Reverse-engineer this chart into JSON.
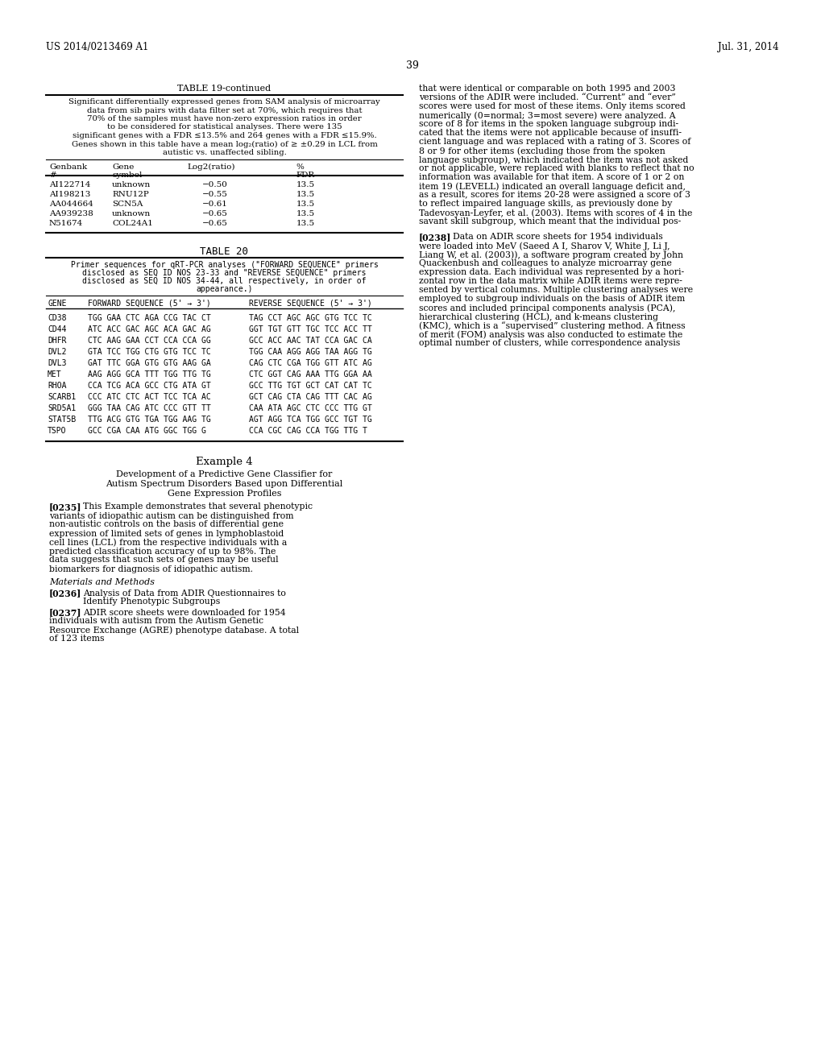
{
  "bg_color": "#ffffff",
  "header_left": "US 2014/0213469 A1",
  "header_right": "Jul. 31, 2014",
  "page_number": "39",
  "table19_title": "TABLE 19-continued",
  "table19_caption_lines": [
    "Significant differentially expressed genes from SAM analysis of microarray",
    "data from sib pairs with data filter set at 70%, which requires that",
    "70% of the samples must have non-zero expression ratios in order",
    "to be considered for statistical analyses. There were 135",
    "significant genes with a FDR ≤13.5% and 264 genes with a FDR ≤15.9%.",
    "Genes shown in this table have a mean log₂(ratio) of ≥ ±0.29 in LCL from",
    "autistic vs. unaffected sibling."
  ],
  "table19_data": [
    [
      "AI122714",
      "unknown",
      "−0.50",
      "13.5"
    ],
    [
      "AI198213",
      "RNU12P",
      "−0.55",
      "13.5"
    ],
    [
      "AA044664",
      "SCN5A",
      "−0.61",
      "13.5"
    ],
    [
      "AA939238",
      "unknown",
      "−0.65",
      "13.5"
    ],
    [
      "N51674",
      "COL24A1",
      "−0.65",
      "13.5"
    ]
  ],
  "table20_title": "TABLE 20",
  "table20_caption_lines": [
    "Primer sequences for qRT-PCR analyses (\"FORWARD SEQUENCE\" primers",
    "disclosed as SEQ ID NOS 23-33 and \"REVERSE SEQUENCE\" primers",
    "disclosed as SEQ ID NOS 34-44, all respectively, in order of",
    "appearance.)"
  ],
  "table20_data": [
    [
      "CD38",
      "TGG GAA CTC AGA CCG TAC CT",
      "TAG CCT AGC AGC GTG TCC TC"
    ],
    [
      "CD44",
      "ATC ACC GAC AGC ACA GAC AG",
      "GGT TGT GTT TGC TCC ACC TT"
    ],
    [
      "DHFR",
      "CTC AAG GAA CCT CCA CCA GG",
      "GCC ACC AAC TAT CCA GAC CA"
    ],
    [
      "DVL2",
      "GTA TCC TGG CTG GTG TCC TC",
      "TGG CAA AGG AGG TAA AGG TG"
    ],
    [
      "DVL3",
      "GAT TTC GGA GTG GTG AAG GA",
      "CAG CTC CGA TGG GTT ATC AG"
    ],
    [
      "MET",
      "AAG AGG GCA TTT TGG TTG TG",
      "CTC GGT CAG AAA TTG GGA AA"
    ],
    [
      "RHOA",
      "CCA TCG ACA GCC CTG ATA GT",
      "GCC TTG TGT GCT CAT CAT TC"
    ],
    [
      "SCARB1",
      "CCC ATC CTC ACT TCC TCA AC",
      "GCT CAG CTA CAG TTT CAC AG"
    ],
    [
      "SRD5A1",
      "GGG TAA CAG ATC CCC GTT TT",
      "CAA ATA AGC CTC CCC TTG GT"
    ],
    [
      "STAT5B",
      "TTG ACG GTG TGA TGG AAG TG",
      "AGT AGG TCA TGG GCC TGT TG"
    ],
    [
      "TSPO",
      "GCC CGA CAA ATG GGC TGG G",
      "CCA CGC CAG CCA TGG TTG T"
    ]
  ],
  "example4_title": "Example 4",
  "example4_subtitle_lines": [
    "Development of a Predictive Gene Classifier for",
    "Autism Spectrum Disorders Based upon Differential",
    "Gene Expression Profiles"
  ],
  "para0235_text": "This Example demonstrates that several phenotypic variants of idiopathic autism can be distinguished from non-autistic controls on the basis of differential gene expression of limited sets of genes in lymphoblastoid cell lines (LCL) from the respective individuals with a predicted classification accuracy of up to 98%. The data suggests that such sets of genes may be useful biomarkers for diagnosis of idiopathic autism.",
  "materials_title": "Materials and Methods",
  "para0236_text": "Analysis of Data from ADIR Questionnaires to Identify Phenotypic Subgroups",
  "para0237_text": "ADIR score sheets were downloaded for 1954 individuals with autism from the Autism Genetic Resource Exchange (AGRE) phenotype database. A total of 123 items",
  "right_col_lines": [
    "that were identical or comparable on both 1995 and 2003",
    "versions of the ADIR were included. “Current” and “ever”",
    "scores were used for most of these items. Only items scored",
    "numerically (0=normal; 3=most severe) were analyzed. A",
    "score of 8 for items in the spoken language subgroup indi-",
    "cated that the items were not applicable because of insuffi-",
    "cient language and was replaced with a rating of 3. Scores of",
    "8 or 9 for other items (excluding those from the spoken",
    "language subgroup), which indicated the item was not asked",
    "or not applicable, were replaced with blanks to reflect that no",
    "information was available for that item. A score of 1 or 2 on",
    "item 19 (LEVELL) indicated an overall language deficit and,",
    "as a result, scores for items 20-28 were assigned a score of 3",
    "to reflect impaired language skills, as previously done by",
    "Tadevosyan-Leyfer, et al. (2003). Items with scores of 4 in the",
    "savant skill subgroup, which meant that the individual pos-"
  ],
  "para0238_lines": [
    "Data on ADIR score sheets for 1954 individuals",
    "were loaded into MeV (Saeed A I, Sharov V, White J, Li J,",
    "Liang W, et al. (2003)), a software program created by John",
    "Quackenbush and colleagues to analyze microarray gene",
    "expression data. Each individual was represented by a hori-",
    "zontal row in the data matrix while ADIR items were repre-",
    "sented by vertical columns. Multiple clustering analyses were",
    "employed to subgroup individuals on the basis of ADIR item",
    "scores and included principal components analysis (PCA),",
    "hierarchical clustering (HCL), and k-means clustering",
    "(KMC), which is a “supervised” clustering method. A fitness",
    "of merit (FOM) analysis was also conducted to estimate the",
    "optimal number of clusters, while correspondence analysis"
  ]
}
